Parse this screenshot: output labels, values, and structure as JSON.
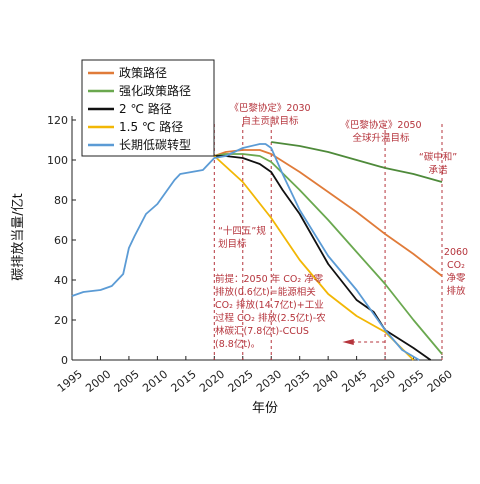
{
  "chart_data": {
    "type": "line",
    "title": "",
    "xlabel": "年份",
    "ylabel": "碳排放当量/亿t",
    "xlim": [
      1995,
      2060
    ],
    "ylim": [
      0,
      120
    ],
    "xticks": [
      1995,
      2000,
      2005,
      2010,
      2015,
      2020,
      2025,
      2030,
      2035,
      2040,
      2045,
      2050,
      2055,
      2060
    ],
    "yticks": [
      0,
      20,
      40,
      60,
      80,
      100,
      120
    ],
    "grid": false,
    "legend": "top-left",
    "series": [
      {
        "name": "政策路径",
        "color": "#e07b39",
        "x": [
          2020,
          2022,
          2025,
          2028,
          2030,
          2035,
          2040,
          2045,
          2050,
          2055,
          2060
        ],
        "y": [
          102,
          104,
          105,
          105,
          103,
          94,
          84,
          74,
          63,
          53,
          42
        ]
      },
      {
        "name": "强化政策路径",
        "color": "#6aa84f",
        "x": [
          2020,
          2022,
          2025,
          2028,
          2030,
          2035,
          2040,
          2045,
          2050,
          2055,
          2060
        ],
        "y": [
          102,
          103,
          103,
          102,
          99,
          85,
          70,
          54,
          38,
          20,
          3
        ]
      },
      {
        "name": "2 ℃ 路径",
        "color": "#111111",
        "x": [
          2020,
          2022,
          2025,
          2028,
          2030,
          2032,
          2035,
          2040,
          2045,
          2048,
          2050,
          2055,
          2058
        ],
        "y": [
          102,
          102,
          101,
          98,
          94,
          85,
          73,
          48,
          30,
          24,
          15,
          6,
          0
        ]
      },
      {
        "name": "1.5 ℃ 路径",
        "color": "#f2b705",
        "x": [
          2020,
          2025,
          2030,
          2035,
          2040,
          2045,
          2050,
          2055
        ],
        "y": [
          102,
          89,
          71,
          50,
          33,
          22,
          14,
          0
        ]
      },
      {
        "name": "长期低碳转型",
        "color": "#5b9bd5",
        "x": [
          1995,
          1997,
          2000,
          2002,
          2004,
          2005,
          2006,
          2008,
          2010,
          2011,
          2013,
          2014,
          2016,
          2018,
          2020,
          2022,
          2025,
          2028,
          2029,
          2030,
          2032,
          2035,
          2040,
          2045,
          2050,
          2053,
          2056
        ],
        "y": [
          32,
          34,
          35,
          37,
          43,
          56,
          62,
          73,
          78,
          82,
          90,
          93,
          94,
          95,
          101,
          102,
          106,
          108,
          108,
          106,
          93,
          75,
          52,
          35,
          15,
          5,
          0
        ]
      },
      {
        "name": "",
        "color": "#4e8a3a",
        "x": [
          2030,
          2035,
          2040,
          2045,
          2050,
          2055,
          2060
        ],
        "y": [
          109,
          107,
          104,
          100,
          96,
          93,
          89
        ]
      }
    ],
    "markers": [
      2020,
      2025,
      2030,
      2050,
      2060
    ],
    "annotations": {
      "paris_ndc": [
        "《巴黎协定》2030",
        "自主贡献目标"
      ],
      "paris_temp": [
        "《巴黎协定》2050",
        "全球升温目标"
      ],
      "carbon_neutral": [
        "“碳中和”",
        "承诺"
      ],
      "fyp14": [
        "“十四五”规",
        "划目标"
      ],
      "co2_2060": [
        "2060",
        "CO₂",
        "净零",
        "排放"
      ],
      "premise": [
        "前提：2050 年 CO₂ 净零",
        "排放(0.6亿t)=能源相关",
        "CO₂ 排放(14.7亿t)+工业",
        "过程 CO₂ 排放(2.5亿t)-农",
        "林碳汇(7.8亿t)-CCUS",
        "(8.8亿t)。"
      ]
    }
  }
}
